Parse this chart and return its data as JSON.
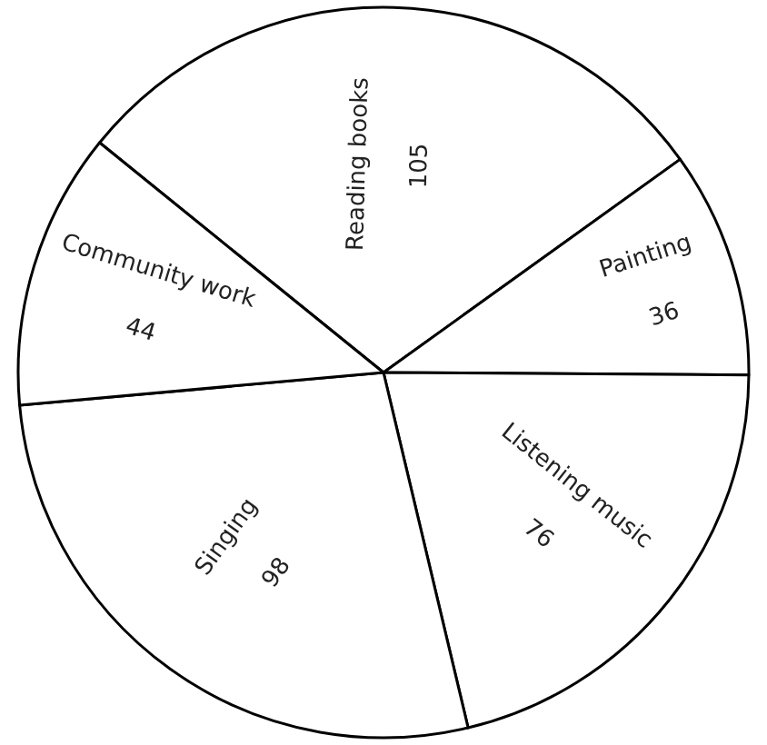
{
  "chart_data": {
    "type": "pie",
    "categories": [
      "Reading books",
      "Painting",
      "Listening music",
      "Singing",
      "Community work"
    ],
    "values": [
      105,
      36,
      76,
      98,
      44
    ],
    "colors": [
      "#ffffff",
      "#ffffff",
      "#ffffff",
      "#ffffff",
      "#ffffff"
    ],
    "data_labels": true,
    "legend": false
  }
}
